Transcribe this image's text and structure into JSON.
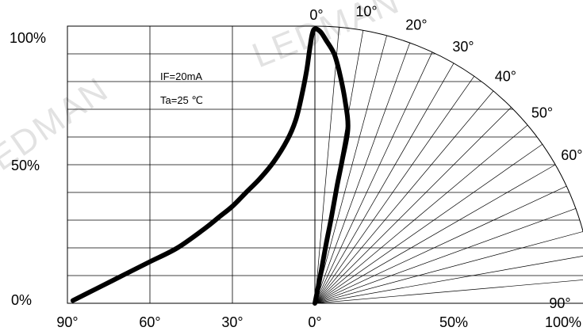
{
  "chart_data": {
    "type": "line",
    "title": "",
    "watermark": "LEDMAN",
    "annotation": {
      "line1": "IF=20mA",
      "line2": "Ta=25 ℃"
    },
    "left_panel": {
      "x_tick_labels": [
        "90°",
        "60°",
        "30°",
        "0°"
      ],
      "y_tick_labels": [
        "100%",
        "50%",
        "0%"
      ],
      "xlim": [
        90,
        0
      ],
      "ylim": [
        0,
        100
      ]
    },
    "right_panel": {
      "radial_tick_labels": [
        "0%",
        "50%",
        "100%"
      ],
      "angle_labels": [
        "0°",
        "10°",
        "20°",
        "30°",
        "40°",
        "50°",
        "60°",
        "70°",
        "80°",
        "90°"
      ],
      "angles": [
        0,
        10,
        20,
        30,
        40,
        50,
        60,
        70,
        80,
        90
      ]
    },
    "series": [
      {
        "points": [
          [
            88,
            1
          ],
          [
            80,
            5
          ],
          [
            70,
            10
          ],
          [
            60,
            15
          ],
          [
            50,
            20
          ],
          [
            40,
            27
          ],
          [
            35,
            31
          ],
          [
            30,
            35
          ],
          [
            25,
            40
          ],
          [
            20,
            45
          ],
          [
            15,
            51
          ],
          [
            10,
            59
          ],
          [
            7,
            66
          ],
          [
            5,
            74
          ],
          [
            3,
            84
          ],
          [
            2,
            91
          ],
          [
            1,
            97
          ],
          [
            0,
            99
          ],
          [
            -2,
            98
          ],
          [
            -4,
            95
          ],
          [
            -7,
            90
          ],
          [
            -9,
            83
          ],
          [
            -11,
            73
          ],
          [
            -12,
            63
          ],
          [
            -10,
            52
          ],
          [
            -8,
            42
          ],
          [
            -6,
            31
          ],
          [
            -4,
            21
          ],
          [
            -2,
            10
          ],
          [
            0,
            0
          ]
        ]
      }
    ],
    "colors": {
      "curve": "#000000",
      "grid": "#000000",
      "watermark": "#bfbfbf"
    }
  }
}
